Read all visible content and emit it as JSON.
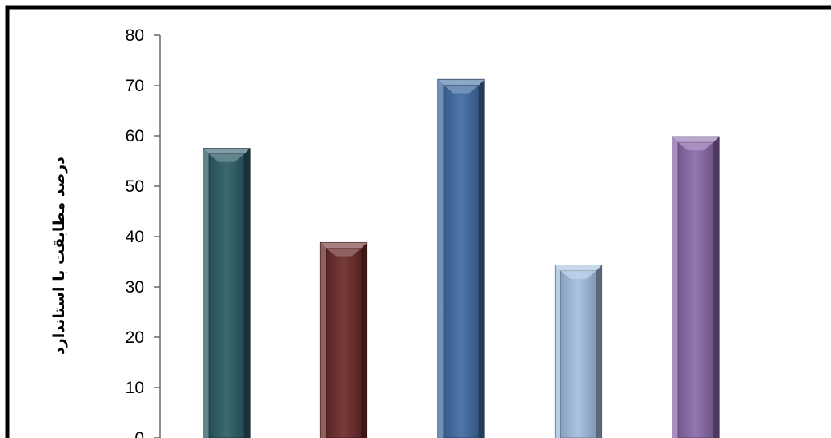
{
  "chart_data": {
    "type": "bar",
    "ylabel": "درصد مطابقت با استاندارد",
    "ylim": [
      0,
      80
    ],
    "yticks": [
      0,
      10,
      20,
      30,
      40,
      50,
      60,
      70,
      80
    ],
    "values": [
      57.5,
      38.8,
      71.2,
      34.3,
      59.8
    ],
    "colors": [
      "#2b5c66",
      "#6b2a2a",
      "#3f6ba1",
      "#a2bedf",
      "#8a6aaa"
    ],
    "grid": false,
    "legend": "none"
  }
}
